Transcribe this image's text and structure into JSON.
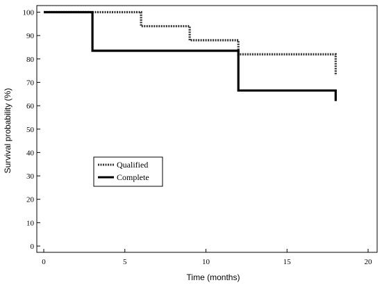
{
  "chart_data": {
    "type": "line",
    "subtype": "kaplan-meier-step",
    "title": "",
    "xlabel": "Time (months)",
    "ylabel": "Survival probability (%)",
    "xlim": [
      0,
      20
    ],
    "ylim": [
      0,
      100
    ],
    "xticks": [
      0,
      5,
      10,
      15,
      20
    ],
    "yticks": [
      0,
      10,
      20,
      30,
      40,
      50,
      60,
      70,
      80,
      90,
      100
    ],
    "grid": false,
    "legend_position": "center-left",
    "series": [
      {
        "name": "Qualified",
        "style": "dotted",
        "color": "#333333",
        "points": [
          [
            0,
            100
          ],
          [
            6,
            100
          ],
          [
            6,
            94
          ],
          [
            9,
            94
          ],
          [
            9,
            88
          ],
          [
            12,
            88
          ],
          [
            12,
            82
          ],
          [
            18,
            82
          ],
          [
            18,
            73
          ]
        ]
      },
      {
        "name": "Complete",
        "style": "solid",
        "color": "#000000",
        "points": [
          [
            0,
            100
          ],
          [
            3,
            100
          ],
          [
            3,
            83.5
          ],
          [
            12,
            83.5
          ],
          [
            12,
            66.5
          ],
          [
            18,
            66.5
          ],
          [
            18,
            62
          ]
        ]
      }
    ]
  }
}
